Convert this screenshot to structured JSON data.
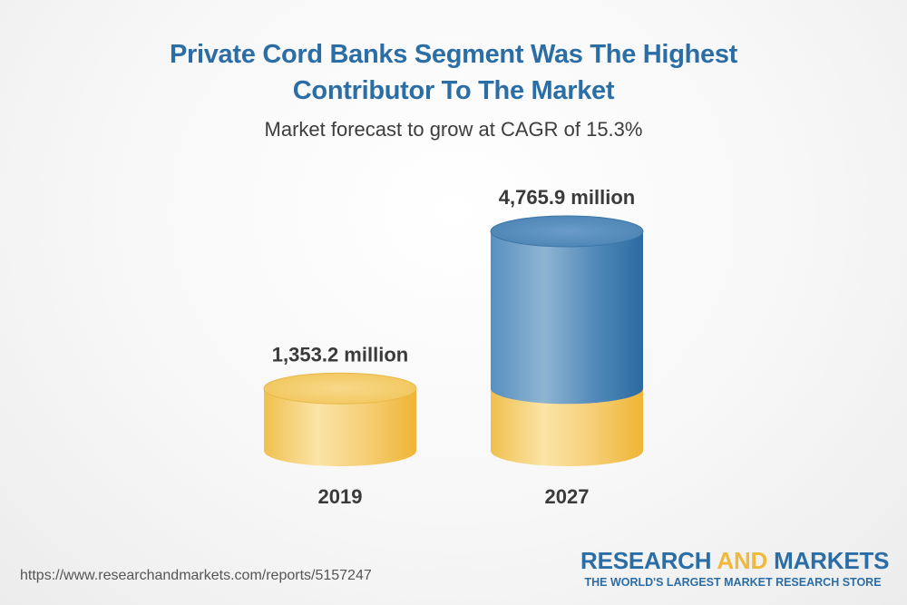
{
  "title_line1": "Private Cord Banks Segment Was The Highest",
  "title_line2": "Contributor To The Market",
  "subtitle": "Market forecast to grow at CAGR of 15.3%",
  "chart_data": {
    "type": "bar",
    "categories": [
      "2019",
      "2027"
    ],
    "values": [
      1353.2,
      4765.9
    ],
    "value_labels": [
      "1,353.2 million",
      "4,765.9 million"
    ],
    "colors": {
      "base": "#f2c25a",
      "growth": "#3f82b8"
    }
  },
  "source_url": "https://www.researchandmarkets.com/reports/5157247",
  "logo": {
    "research": "RESEARCH",
    "and": "AND",
    "markets": "MARKETS",
    "tagline": "THE WORLD'S LARGEST MARKET RESEARCH STORE"
  }
}
